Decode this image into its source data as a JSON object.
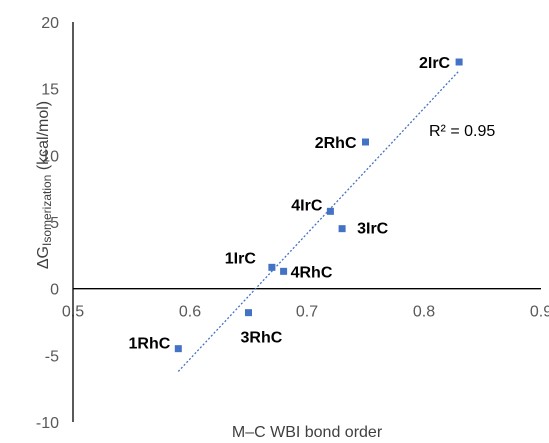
{
  "chart_data": {
    "type": "scatter",
    "xlabel": "M–C WBI bond order",
    "ylabel": {
      "main": "ΔG",
      "sub": "Isomerization",
      "unit": " (kcal/mol)"
    },
    "xlim": [
      0.5,
      0.9
    ],
    "ylim": [
      -10,
      20
    ],
    "xticks": [
      0.5,
      0.6,
      0.7,
      0.8,
      0.9
    ],
    "xtick_labels": [
      "0.5",
      "0.6",
      "0.7",
      "0.8",
      "0.9"
    ],
    "yticks": [
      -10,
      -5,
      0,
      5,
      10,
      15,
      20
    ],
    "ytick_labels": [
      "-10",
      "-5",
      "0",
      "5",
      "10",
      "15",
      "20"
    ],
    "grid": false,
    "marker_color": "#4472C4",
    "points": [
      {
        "label": "2IrC",
        "x": 0.83,
        "y": 17.0
      },
      {
        "label": "2RhC",
        "x": 0.75,
        "y": 11.0
      },
      {
        "label": "4IrC",
        "x": 0.72,
        "y": 5.8
      },
      {
        "label": "3IrC",
        "x": 0.73,
        "y": 4.5
      },
      {
        "label": "1IrC",
        "x": 0.67,
        "y": 1.6
      },
      {
        "label": "4RhC",
        "x": 0.68,
        "y": 1.3
      },
      {
        "label": "3RhC",
        "x": 0.65,
        "y": -1.8
      },
      {
        "label": "1RhC",
        "x": 0.59,
        "y": -4.5
      }
    ],
    "trendline": {
      "type": "linear",
      "x_range": [
        0.59,
        0.83
      ],
      "r2_label": "R² = 0.95",
      "color": "#4472C4",
      "style": "dotted"
    }
  }
}
